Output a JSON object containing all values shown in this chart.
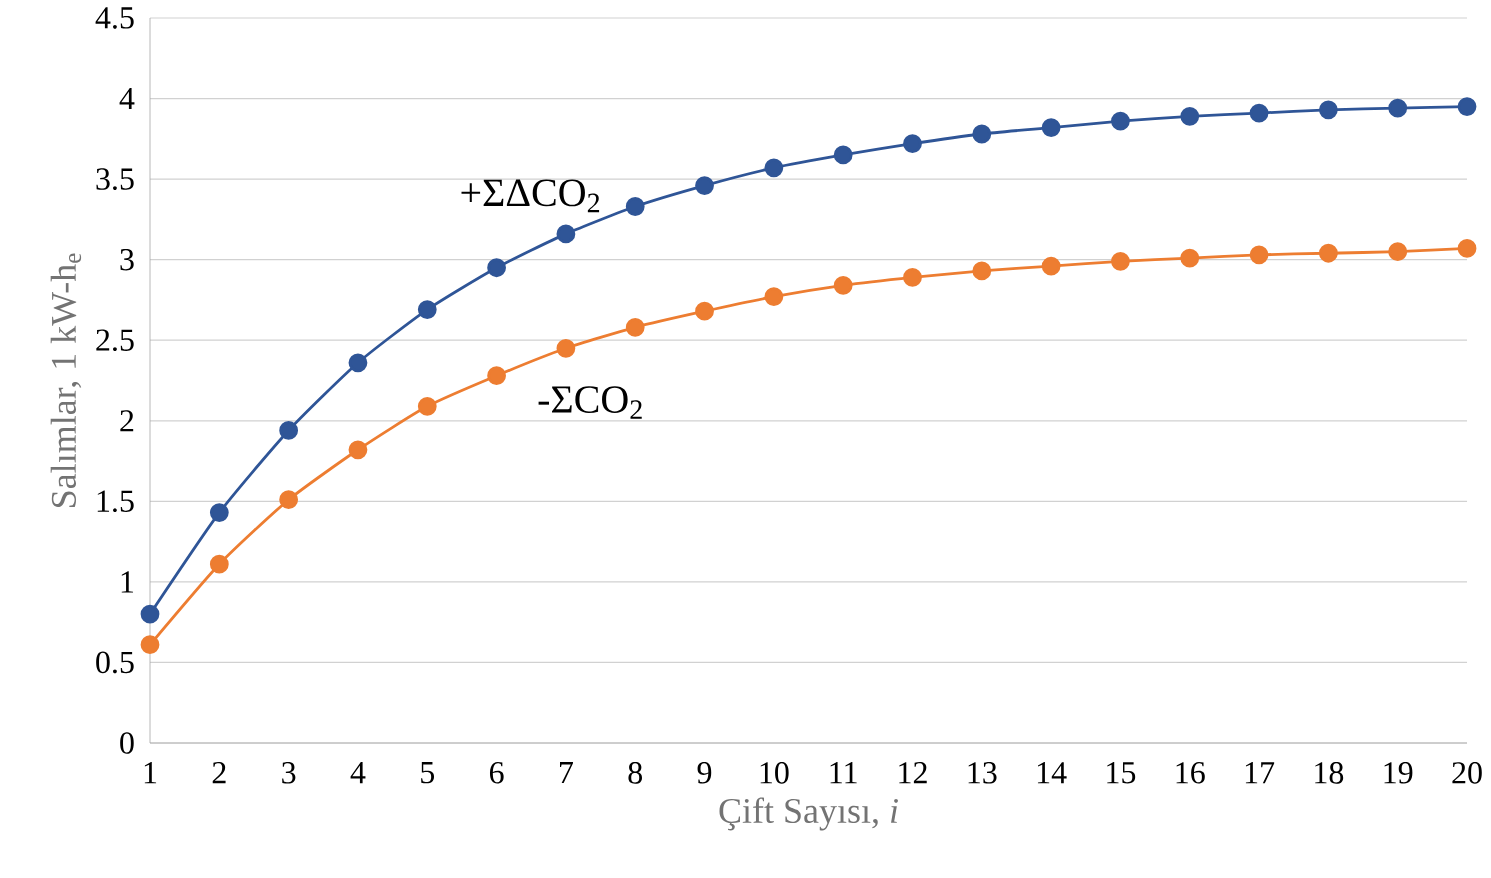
{
  "chart_data": {
    "type": "line",
    "xlabel": "Çift Sayısı, *i*",
    "ylabel": "Salımlar, 1 kW-h$_{e}$",
    "categories": [
      "1",
      "2",
      "3",
      "4",
      "5",
      "6",
      "7",
      "8",
      "9",
      "10",
      "11",
      "12",
      "13",
      "14",
      "15",
      "16",
      "17",
      "18",
      "19",
      "20"
    ],
    "series": [
      {
        "name": "+ΣΔCO$_{2}$",
        "color": "#2f5597",
        "values": [
          0.8,
          1.43,
          1.94,
          2.36,
          2.69,
          2.95,
          3.16,
          3.33,
          3.46,
          3.57,
          3.65,
          3.72,
          3.78,
          3.82,
          3.86,
          3.89,
          3.91,
          3.93,
          3.94,
          3.95
        ]
      },
      {
        "name": "-ΣCO$_{2}$",
        "color": "#ed7d31",
        "values": [
          0.61,
          1.11,
          1.51,
          1.82,
          2.09,
          2.28,
          2.45,
          2.58,
          2.68,
          2.77,
          2.84,
          2.89,
          2.93,
          2.96,
          2.99,
          3.01,
          3.03,
          3.04,
          3.05,
          3.07
        ]
      }
    ],
    "ylim": [
      0,
      4.5
    ],
    "yticks": [
      0,
      0.5,
      1,
      1.5,
      2,
      2.5,
      3,
      3.5,
      4,
      4.5
    ],
    "grid": "y",
    "legend": false,
    "marker": "circle",
    "line_style": "solid"
  }
}
